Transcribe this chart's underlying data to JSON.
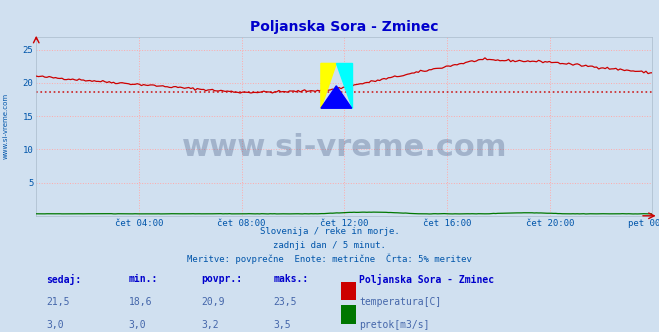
{
  "title": "Poljanska Sora - Zminec",
  "title_color": "#0000cc",
  "bg_color": "#d0e0f0",
  "plot_bg_color": "#d0e0f0",
  "grid_color": "#ffaaaa",
  "grid_linestyle": ":",
  "xlabel_color": "#0055aa",
  "ylabel_color": "#0055aa",
  "xtick_labels": [
    "čet 04:00",
    "čet 08:00",
    "čet 12:00",
    "čet 16:00",
    "čet 20:00",
    "pet 00:00"
  ],
  "xtick_positions": [
    0.1666,
    0.3333,
    0.5,
    0.6666,
    0.8333,
    1.0
  ],
  "ytick_labels": [
    "",
    "5",
    "10",
    "15",
    "20",
    "25"
  ],
  "ytick_values": [
    0,
    5,
    10,
    15,
    20,
    25
  ],
  "ylim": [
    0,
    27
  ],
  "temp_color": "#cc0000",
  "flow_color": "#007700",
  "avg_line_color": "#cc2222",
  "avg_line_value": 18.6,
  "watermark_text": "www.si-vreme.com",
  "watermark_color": "#1a3060",
  "watermark_alpha": 0.25,
  "watermark_fontsize": 22,
  "subtitle_lines": [
    "Slovenija / reke in morje.",
    "zadnji dan / 5 minut.",
    "Meritve: povprečne  Enote: metrične  Črta: 5% meritev"
  ],
  "subtitle_color": "#0055aa",
  "table_headers": [
    "sedaj:",
    "min.:",
    "povpr.:",
    "maks.:"
  ],
  "table_row1": [
    "21,5",
    "18,6",
    "20,9",
    "23,5"
  ],
  "table_row2": [
    "3,0",
    "3,0",
    "3,2",
    "3,5"
  ],
  "legend_title": "Poljanska Sora - Zminec",
  "legend_temp": "temperatura[C]",
  "legend_flow": "pretok[m3/s]",
  "left_label": "www.si-vreme.com",
  "left_label_color": "#0055aa"
}
